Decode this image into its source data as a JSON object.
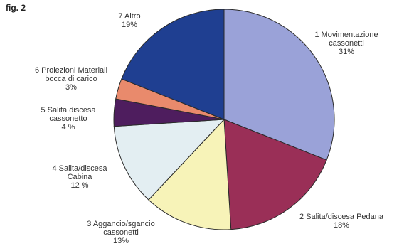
{
  "figure_label": "fig. 2",
  "chart_data": {
    "type": "pie",
    "title": "",
    "start_angle_deg": 0,
    "direction": "clockwise",
    "slices": [
      {
        "label_lines": [
          "1 Movimentazione",
          "cassonetti",
          "31%"
        ],
        "value": 31,
        "color": "#9aa2d8"
      },
      {
        "label_lines": [
          "2 Salita/discesa Pedana",
          "18%"
        ],
        "value": 18,
        "color": "#9a2f57"
      },
      {
        "label_lines": [
          "3 Aggancio/sgancio",
          "cassonetti",
          "13%"
        ],
        "value": 13,
        "color": "#f7f3b8"
      },
      {
        "label_lines": [
          "4 Salita/discesa",
          "Cabina",
          "12 %"
        ],
        "value": 12,
        "color": "#e3eef2"
      },
      {
        "label_lines": [
          "5 Salita discesa",
          "cassonetto",
          "4 %"
        ],
        "value": 4,
        "color": "#4e1d5e"
      },
      {
        "label_lines": [
          "6 Proiezioni Materiali",
          "bocca di carico",
          "3%"
        ],
        "value": 3,
        "color": "#e98a6c"
      },
      {
        "label_lines": [
          "7 Altro",
          "19%"
        ],
        "value": 19,
        "color": "#1f3f91"
      }
    ]
  }
}
